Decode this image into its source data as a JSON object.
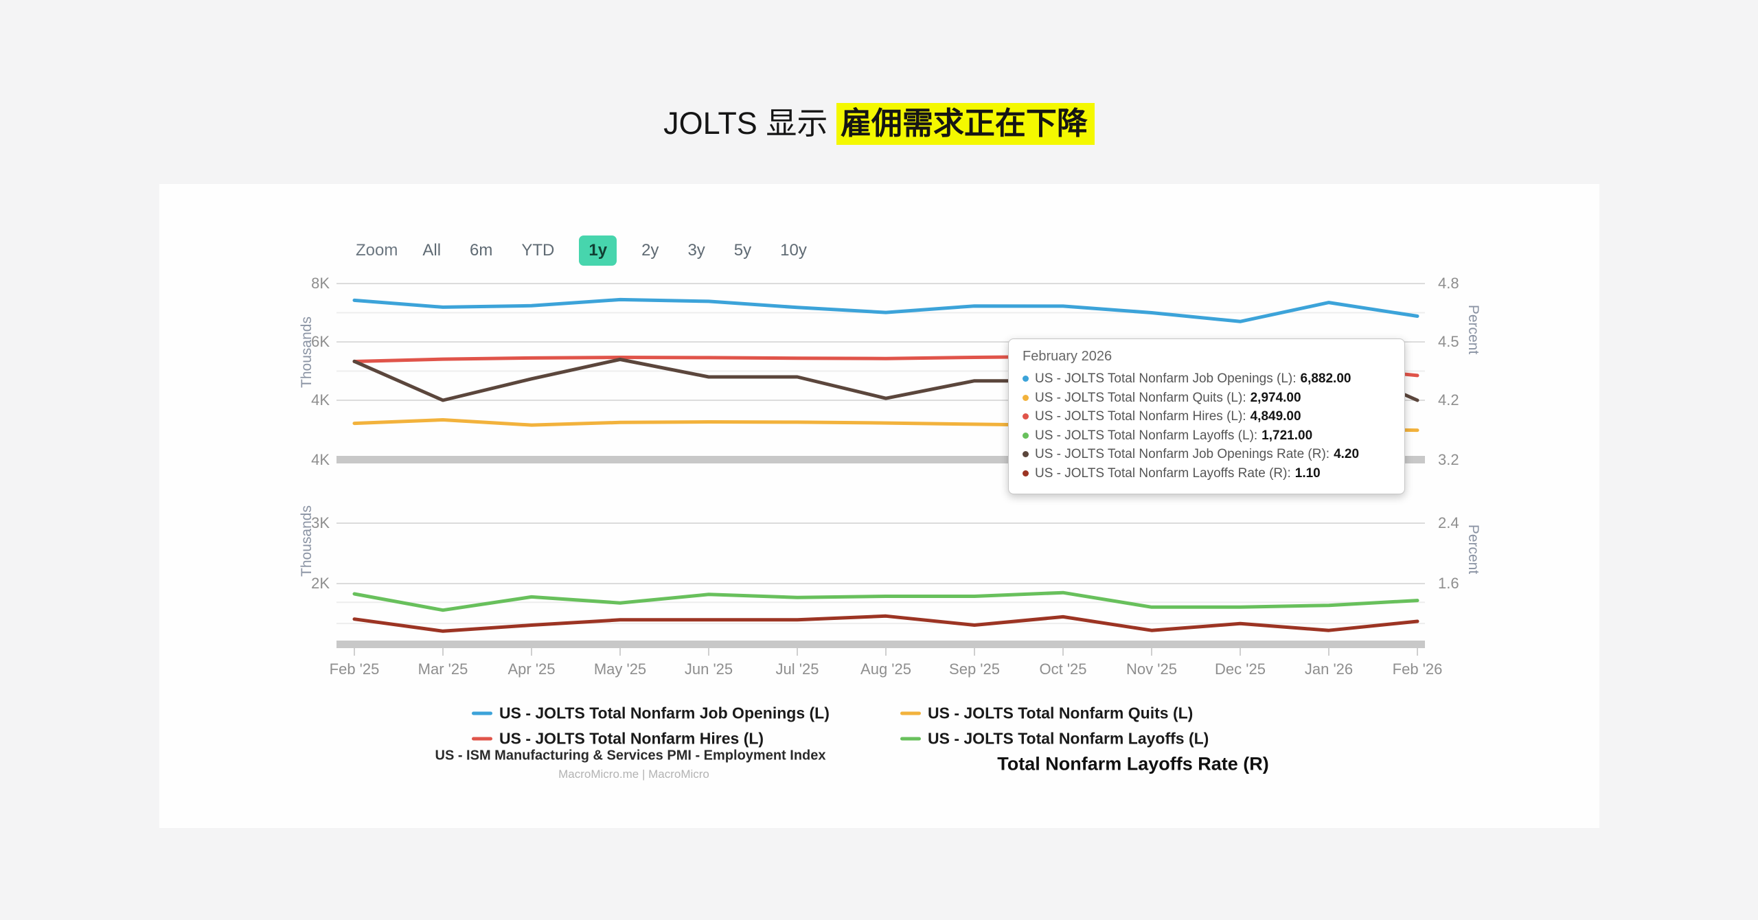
{
  "page": {
    "title_plain": "JOLTS 显示",
    "title_highlight": "雇佣需求正在下降"
  },
  "toolbar": {
    "zoom_label": "Zoom",
    "ranges": [
      "All",
      "6m",
      "YTD",
      "1y",
      "2y",
      "3y",
      "5y",
      "10y"
    ],
    "active": "1y"
  },
  "chart_data": {
    "type": "line",
    "x": [
      "Feb '25",
      "Mar '25",
      "Apr '25",
      "May '25",
      "Jun '25",
      "Jul '25",
      "Aug '25",
      "Sep '25",
      "Oct '25",
      "Nov '25",
      "Dec '25",
      "Jan '26",
      "Feb '26"
    ],
    "panels": [
      {
        "left_axis_label": "Thousands",
        "right_axis_label": "Percent",
        "gridlines": [
          {
            "v": 8000,
            "left": "8K",
            "right": "4.8"
          },
          {
            "v": 7000
          },
          {
            "v": 6000,
            "left": "6K",
            "right": "4.5"
          },
          {
            "v": 5000
          },
          {
            "v": 4000,
            "left": "4K",
            "right": "4.2"
          }
        ],
        "baseline": {
          "left": "4K",
          "right": "3.2"
        }
      },
      {
        "left_axis_label": "Thousands",
        "right_axis_label": "Percent",
        "gridlines": [
          {
            "v": 3000,
            "left": "3K",
            "right": "2.4"
          },
          {
            "v": 2000,
            "left": "2K",
            "right": "1.6"
          },
          {
            "v": 1690
          },
          {
            "v": 1340
          }
        ],
        "baseline": {}
      }
    ],
    "series": [
      {
        "name": "US - JOLTS Total Nonfarm Job Openings (L)",
        "key": "job-openings",
        "panel": 0,
        "axis": "L",
        "color": "#3ca3d9",
        "values": [
          7425,
          7190,
          7240,
          7450,
          7390,
          7180,
          7010,
          7230,
          7225,
          7000,
          6700,
          7350,
          6882
        ]
      },
      {
        "name": "US - JOLTS Total Nonfarm Quits (L)",
        "key": "quits",
        "panel": 0,
        "axis": "L",
        "color": "#f2b23c",
        "values": [
          3210,
          3330,
          3150,
          3240,
          3260,
          3250,
          3220,
          3180,
          3140,
          3100,
          3060,
          3010,
          2974
        ]
      },
      {
        "name": "US - JOLTS Total Nonfarm Hires (L)",
        "key": "hires",
        "panel": 0,
        "axis": "L",
        "color": "#e0544a",
        "values": [
          5330,
          5410,
          5450,
          5470,
          5460,
          5440,
          5430,
          5470,
          5500,
          5460,
          5400,
          5150,
          4849
        ]
      },
      {
        "name": "US - JOLTS Total Nonfarm Job Openings Rate (R)",
        "key": "job-openings-rate",
        "panel": 0,
        "axis": "R",
        "color": "#5b463c",
        "values": [
          4.4,
          4.2,
          4.31,
          4.41,
          4.32,
          4.32,
          4.21,
          4.3,
          4.3,
          4.32,
          4.38,
          4.4,
          4.2
        ]
      },
      {
        "name": "US - JOLTS Total Nonfarm Layoffs (L)",
        "key": "layoffs",
        "panel": 1,
        "axis": "L",
        "color": "#68c05c",
        "values": [
          1830,
          1560,
          1780,
          1680,
          1820,
          1770,
          1790,
          1790,
          1850,
          1610,
          1610,
          1640,
          1721
        ]
      },
      {
        "name": "US - JOLTS Total Nonfarm Layoffs Rate (R)",
        "key": "layoffs-rate",
        "panel": 1,
        "axis": "R",
        "color": "#9c3423",
        "values": [
          1.13,
          0.97,
          1.05,
          1.12,
          1.12,
          1.12,
          1.17,
          1.05,
          1.16,
          0.98,
          1.07,
          0.98,
          1.1
        ]
      }
    ]
  },
  "tooltip": {
    "title": "February 2026",
    "rows": [
      {
        "label": "US - JOLTS Total Nonfarm Job Openings (L):",
        "value": "6,882.00",
        "color": "#3ca3d9"
      },
      {
        "label": "US - JOLTS Total Nonfarm Quits (L):",
        "value": "2,974.00",
        "color": "#f2b23c"
      },
      {
        "label": "US - JOLTS Total Nonfarm Hires (L):",
        "value": "4,849.00",
        "color": "#e0544a"
      },
      {
        "label": "US - JOLTS Total Nonfarm Layoffs (L):",
        "value": "1,721.00",
        "color": "#68c05c"
      },
      {
        "label": "US - JOLTS Total Nonfarm Job Openings Rate (R):",
        "value": "4.20",
        "color": "#5b463c"
      },
      {
        "label": "US - JOLTS Total Nonfarm Layoffs Rate (R):",
        "value": "1.10",
        "color": "#9c3423"
      }
    ]
  },
  "legend": {
    "items": [
      {
        "label": "US - JOLTS Total Nonfarm Job Openings (L)",
        "color": "#3ca3d9",
        "key": "job-openings"
      },
      {
        "label": "US - JOLTS Total Nonfarm Quits (L)",
        "color": "#f2b23c",
        "key": "quits"
      },
      {
        "label": "US - JOLTS Total Nonfarm Hires (L)",
        "color": "#e0544a",
        "key": "hires"
      },
      {
        "label": "US - JOLTS Total Nonfarm Layoffs (L)",
        "color": "#68c05c",
        "key": "layoffs"
      }
    ],
    "ism_label": "US - ISM Manufacturing & Services PMI - Employment Index",
    "layoffs_rate_label": "Total Nonfarm Layoffs Rate (R)",
    "watermark": "MacroMicro.me | MacroMicro"
  }
}
